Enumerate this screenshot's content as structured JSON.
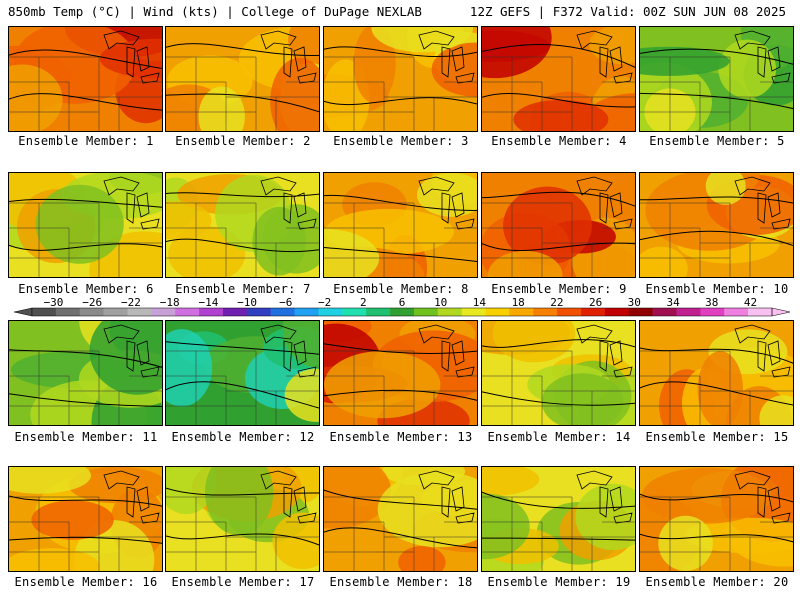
{
  "header": {
    "left_title": "850mb Temp (°C) | Wind (kts) | College of DuPage NEXLAB",
    "right_title": "12Z GEFS | F372 Valid: 00Z SUN JUN 08 2025"
  },
  "members": [
    {
      "label": "Ensemble Member: 1",
      "palette": "hot"
    },
    {
      "label": "Ensemble Member: 2",
      "palette": "warm"
    },
    {
      "label": "Ensemble Member: 3",
      "palette": "warm"
    },
    {
      "label": "Ensemble Member: 4",
      "palette": "hot"
    },
    {
      "label": "Ensemble Member: 5",
      "palette": "cool"
    },
    {
      "label": "Ensemble Member: 6",
      "palette": "mild"
    },
    {
      "label": "Ensemble Member: 7",
      "palette": "mild"
    },
    {
      "label": "Ensemble Member: 8",
      "palette": "warm"
    },
    {
      "label": "Ensemble Member: 9",
      "palette": "hot"
    },
    {
      "label": "Ensemble Member: 10",
      "palette": "warm"
    },
    {
      "label": "Ensemble Member: 11",
      "palette": "cool"
    },
    {
      "label": "Ensemble Member: 12",
      "palette": "cold"
    },
    {
      "label": "Ensemble Member: 13",
      "palette": "hot"
    },
    {
      "label": "Ensemble Member: 14",
      "palette": "mild"
    },
    {
      "label": "Ensemble Member: 15",
      "palette": "warm"
    },
    {
      "label": "Ensemble Member: 16",
      "palette": "warm"
    },
    {
      "label": "Ensemble Member: 17",
      "palette": "mild"
    },
    {
      "label": "Ensemble Member: 18",
      "palette": "warm"
    },
    {
      "label": "Ensemble Member: 19",
      "palette": "mild"
    },
    {
      "label": "Ensemble Member: 20",
      "palette": "warm"
    }
  ],
  "colorbar": {
    "labels": [
      "−30",
      "−26",
      "−22",
      "−18",
      "−14",
      "−10",
      "−6",
      "−2",
      "2",
      "6",
      "10",
      "14",
      "18",
      "22",
      "26",
      "30",
      "34",
      "38",
      "42"
    ],
    "colors": [
      "#505050",
      "#707070",
      "#8a8a8a",
      "#a0a0a0",
      "#b8b8b8",
      "#c8a0d8",
      "#d070e0",
      "#b040d0",
      "#7020b0",
      "#3040c0",
      "#2070e0",
      "#20a0f0",
      "#20d0e0",
      "#20e0b0",
      "#20c070",
      "#30a030",
      "#70c020",
      "#b0d820",
      "#e8e820",
      "#f8d000",
      "#f8a800",
      "#f88000",
      "#f05000",
      "#e02000",
      "#c00000",
      "#900000",
      "#a01050",
      "#c02090",
      "#e040c0",
      "#f080e0",
      "#f8c0f0"
    ]
  },
  "palettes": {
    "hot": [
      "#f08000",
      "#f06000",
      "#e03000",
      "#f0a000",
      "#c00000"
    ],
    "warm": [
      "#f0a000",
      "#f8c000",
      "#f08000",
      "#e8e020",
      "#f06000"
    ],
    "mild": [
      "#e8e020",
      "#b0d820",
      "#f0c000",
      "#80c020",
      "#f0a000"
    ],
    "cool": [
      "#80c020",
      "#50b030",
      "#b0d820",
      "#30a030",
      "#e8e020"
    ],
    "cold": [
      "#30a030",
      "#20c070",
      "#50b030",
      "#20d0b0",
      "#e8e020"
    ]
  }
}
